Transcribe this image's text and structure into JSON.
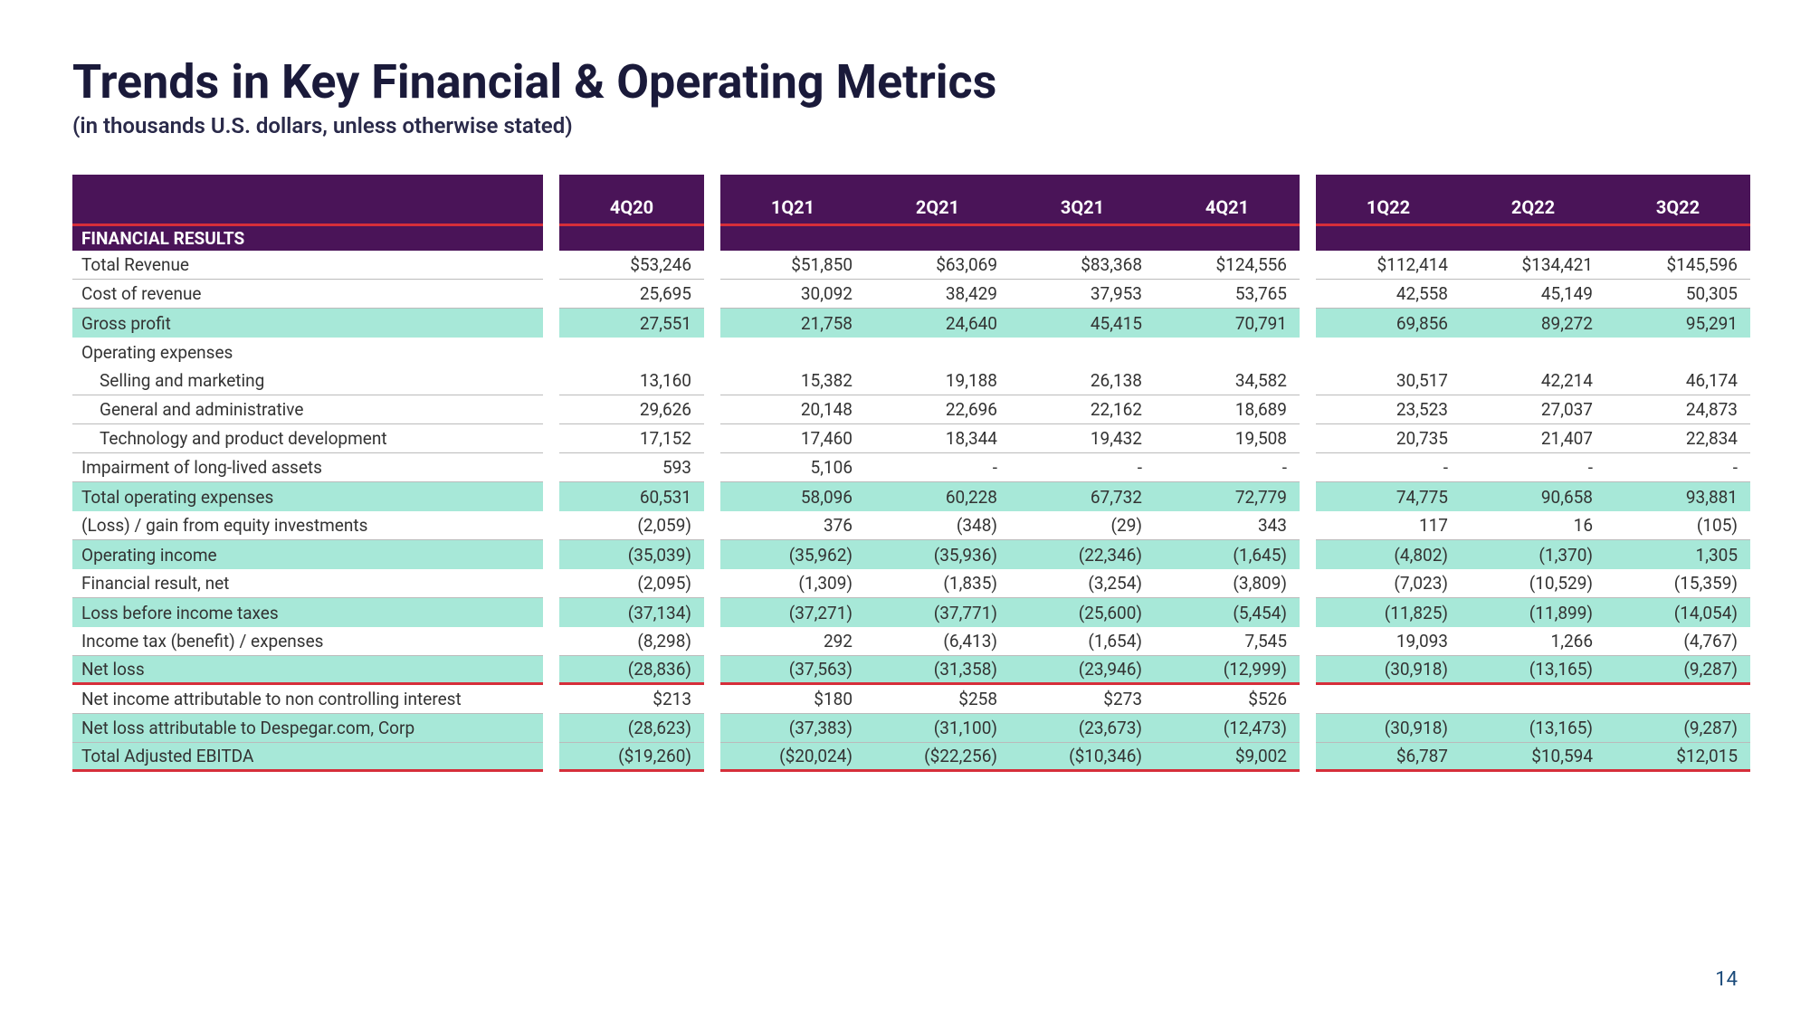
{
  "title": "Trends in Key Financial & Operating Metrics",
  "subtitle": "(in thousands U.S. dollars, unless otherwise stated)",
  "section_header": "FINANCIAL RESULTS",
  "page_number": "14",
  "colors": {
    "header_bg": "#4a1458",
    "header_text": "#ffffff",
    "accent_red": "#d62e3a",
    "highlight": "#a7e8d8",
    "title_color": "#1a1a3a",
    "body_text": "#333333",
    "page_bg": "#ffffff"
  },
  "typography": {
    "title_fontsize": 52,
    "title_weight": 700,
    "subtitle_fontsize": 24,
    "header_fontsize": 20,
    "body_fontsize": 19
  },
  "column_groups": [
    {
      "columns": [
        "4Q20"
      ]
    },
    {
      "columns": [
        "1Q21",
        "2Q21",
        "3Q21",
        "4Q21"
      ]
    },
    {
      "columns": [
        "1Q22",
        "2Q22",
        "3Q22"
      ]
    }
  ],
  "rows": [
    {
      "label": "Total Revenue",
      "indent": false,
      "highlight": false,
      "border": "grey",
      "g1": [
        "$53,246"
      ],
      "g2": [
        "$51,850",
        "$63,069",
        "$83,368",
        "$124,556"
      ],
      "g3": [
        "$112,414",
        "$134,421",
        "$145,596"
      ]
    },
    {
      "label": "Cost of revenue",
      "indent": false,
      "highlight": false,
      "border": "grey",
      "g1": [
        "25,695"
      ],
      "g2": [
        "30,092",
        "38,429",
        "37,953",
        "53,765"
      ],
      "g3": [
        "42,558",
        "45,149",
        "50,305"
      ]
    },
    {
      "label": "Gross profit",
      "indent": false,
      "highlight": true,
      "border": "none",
      "g1": [
        "27,551"
      ],
      "g2": [
        "21,758",
        "24,640",
        "45,415",
        "70,791"
      ],
      "g3": [
        "69,856",
        "89,272",
        "95,291"
      ]
    },
    {
      "label": "Operating expenses",
      "indent": false,
      "highlight": false,
      "border": "none",
      "g1": [
        ""
      ],
      "g2": [
        "",
        "",
        "",
        ""
      ],
      "g3": [
        "",
        "",
        ""
      ]
    },
    {
      "label": "Selling and marketing",
      "indent": true,
      "highlight": false,
      "border": "grey",
      "g1": [
        "13,160"
      ],
      "g2": [
        "15,382",
        "19,188",
        "26,138",
        "34,582"
      ],
      "g3": [
        "30,517",
        "42,214",
        "46,174"
      ]
    },
    {
      "label": "General and administrative",
      "indent": true,
      "highlight": false,
      "border": "grey",
      "g1": [
        "29,626"
      ],
      "g2": [
        "20,148",
        "22,696",
        "22,162",
        "18,689"
      ],
      "g3": [
        "23,523",
        "27,037",
        "24,873"
      ]
    },
    {
      "label": "Technology and product development",
      "indent": true,
      "highlight": false,
      "border": "grey",
      "g1": [
        "17,152"
      ],
      "g2": [
        "17,460",
        "18,344",
        "19,432",
        "19,508"
      ],
      "g3": [
        "20,735",
        "21,407",
        "22,834"
      ]
    },
    {
      "label": "Impairment of long-lived assets",
      "indent": false,
      "highlight": false,
      "border": "grey",
      "g1": [
        "593"
      ],
      "g2": [
        "5,106",
        "-",
        "-",
        "-"
      ],
      "g3": [
        "-",
        "-",
        "-"
      ]
    },
    {
      "label": "Total operating expenses",
      "indent": false,
      "highlight": true,
      "border": "none",
      "g1": [
        "60,531"
      ],
      "g2": [
        "58,096",
        "60,228",
        "67,732",
        "72,779"
      ],
      "g3": [
        "74,775",
        "90,658",
        "93,881"
      ]
    },
    {
      "label": "(Loss) / gain from equity investments",
      "indent": false,
      "highlight": false,
      "border": "grey",
      "g1": [
        "(2,059)"
      ],
      "g2": [
        "376",
        "(348)",
        "(29)",
        "343"
      ],
      "g3": [
        "117",
        "16",
        "(105)"
      ]
    },
    {
      "label": "Operating income",
      "indent": false,
      "highlight": true,
      "border": "none",
      "g1": [
        "(35,039)"
      ],
      "g2": [
        "(35,962)",
        "(35,936)",
        "(22,346)",
        "(1,645)"
      ],
      "g3": [
        "(4,802)",
        "(1,370)",
        "1,305"
      ]
    },
    {
      "label": "Financial result, net",
      "indent": false,
      "highlight": false,
      "border": "grey",
      "g1": [
        "(2,095)"
      ],
      "g2": [
        "(1,309)",
        "(1,835)",
        "(3,254)",
        "(3,809)"
      ],
      "g3": [
        "(7,023)",
        "(10,529)",
        "(15,359)"
      ]
    },
    {
      "label": "Loss before income taxes",
      "indent": false,
      "highlight": true,
      "border": "none",
      "g1": [
        "(37,134)"
      ],
      "g2": [
        "(37,271)",
        "(37,771)",
        "(25,600)",
        "(5,454)"
      ],
      "g3": [
        "(11,825)",
        "(11,899)",
        "(14,054)"
      ]
    },
    {
      "label": "Income tax (benefit) / expenses",
      "indent": false,
      "highlight": false,
      "border": "grey",
      "g1": [
        "(8,298)"
      ],
      "g2": [
        "292",
        "(6,413)",
        "(1,654)",
        "7,545"
      ],
      "g3": [
        "19,093",
        "1,266",
        "(4,767)"
      ]
    },
    {
      "label": "Net loss",
      "indent": false,
      "highlight": true,
      "border": "red",
      "g1": [
        "(28,836)"
      ],
      "g2": [
        "(37,563)",
        "(31,358)",
        "(23,946)",
        "(12,999)"
      ],
      "g3": [
        "(30,918)",
        "(13,165)",
        "(9,287)"
      ]
    },
    {
      "label": "Net income attributable to non controlling interest",
      "indent": false,
      "highlight": false,
      "border": "grey",
      "g1": [
        "$213"
      ],
      "g2": [
        "$180",
        "$258",
        "$273",
        "$526"
      ],
      "g3": [
        "",
        "",
        ""
      ]
    },
    {
      "label": "Net loss attributable to Despegar.com, Corp",
      "indent": false,
      "highlight": true,
      "border": "grey",
      "g1": [
        "(28,623)"
      ],
      "g2": [
        "(37,383)",
        "(31,100)",
        "(23,673)",
        "(12,473)"
      ],
      "g3": [
        "(30,918)",
        "(13,165)",
        "(9,287)"
      ]
    },
    {
      "label": "Total Adjusted EBITDA",
      "indent": false,
      "highlight": true,
      "border": "red",
      "g1": [
        "($19,260)"
      ],
      "g2": [
        "($20,024)",
        "($22,256)",
        "($10,346)",
        "$9,002"
      ],
      "g3": [
        "$6,787",
        "$10,594",
        "$12,015"
      ]
    }
  ]
}
